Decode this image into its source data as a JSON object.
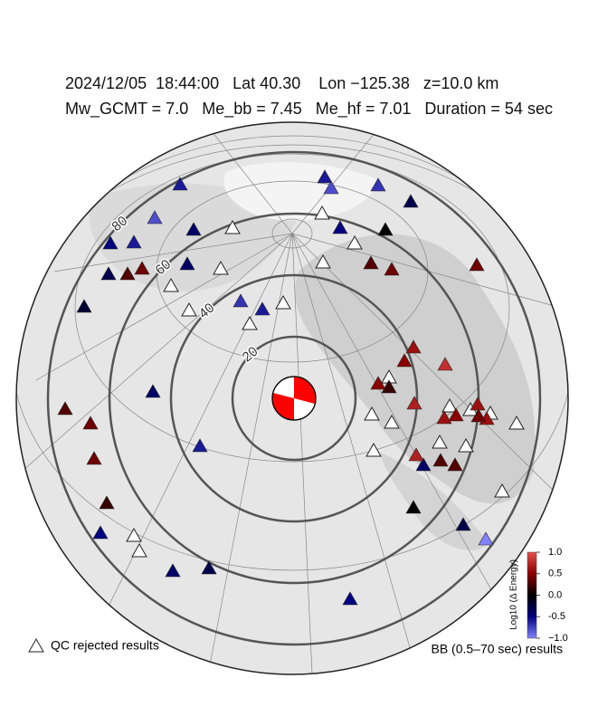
{
  "header": {
    "line1": "2024/12/05  18:44:00   Lat 40.30    Lon −125.38   z=10.0 km",
    "line2": "Mw_GCMT = 7.0   Me_bb = 7.45   Me_hf = 7.01   Duration = 54 sec"
  },
  "distance_rings": [
    20,
    40,
    60,
    80
  ],
  "stations": {
    "values": [
      -0.6,
      -0.6,
      -0.8,
      -0.7,
      -0.8,
      -0.4,
      -0.5,
      -0.6,
      -0.5,
      -0.4,
      -0.3,
      -0.7,
      -0.6,
      -0.4,
      -0.6,
      -0.4,
      -0.5,
      -0.4,
      -0.3,
      -0.5,
      -0.3,
      -1.0,
      -0.3,
      -0.2,
      0,
      0,
      0.2,
      0.2,
      0.3,
      0.4,
      0.4,
      0.3,
      0.4,
      0.3,
      0.4,
      0.4,
      0.6,
      0.5,
      0.8,
      0.5,
      0.7,
      0.7,
      0.3,
      0.3,
      0.6,
      0.5,
      0.6,
      0.6,
      0.4
    ]
  },
  "colorbar": {
    "label": "Log10 (Δ Energy)",
    "lim": [
      -1,
      1
    ],
    "ticks": [
      {
        "value": 1,
        "label": "1.0"
      },
      0.5,
      {
        "value": 0,
        "label": "0.0"
      },
      -0.5,
      {
        "value": -1,
        "label": "−1.0"
      }
    ]
  },
  "legend": {
    "qc": "QC rejected results",
    "bb": "BB (0.5–70 sec) results"
  }
}
